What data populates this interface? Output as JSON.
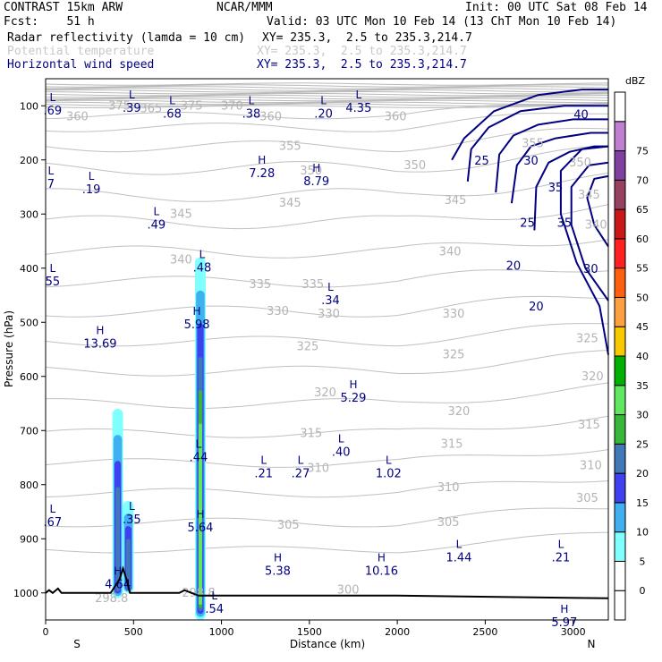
{
  "header": {
    "model": "CONTRAST 15km ARW",
    "org": "NCAR/MMM",
    "init": "Init: 00 UTC Sat 08 Feb 14",
    "fcst": "Fcst:    51 h",
    "valid": "Valid: 03 UTC Mon 10 Feb 14 (13 ChT Mon 10 Feb 14)",
    "fields": [
      {
        "name": "Radar reflectivity (lamda = 10 cm)",
        "xy": "XY= 235.3,  2.5 to 235.3,214.7",
        "color": "#000000"
      },
      {
        "name": "Potential temperature",
        "xy": "XY= 235.3,  2.5 to 235.3,214.7",
        "color": "#c8c8c8"
      },
      {
        "name": "Horizontal wind speed",
        "xy": "XY= 235.3,  2.5 to 235.3,214.7",
        "color": "#000080"
      }
    ]
  },
  "chart_data": {
    "type": "cross-section",
    "xlabel": "Distance (km)",
    "ylabel": "Pressure (hPa)",
    "xlim": [
      0,
      3200
    ],
    "ylim": [
      1050,
      50
    ],
    "xticks": [
      0,
      500,
      1000,
      1500,
      2000,
      2500,
      3000
    ],
    "yticks": [
      100,
      200,
      300,
      400,
      500,
      600,
      700,
      800,
      900,
      1000
    ],
    "x_end_labels": {
      "left": "S",
      "right": "N"
    },
    "colorbar": {
      "unit": "dBZ",
      "levels": [
        0,
        5,
        10,
        15,
        20,
        25,
        30,
        35,
        40,
        45,
        50,
        55,
        60,
        65,
        70,
        75
      ],
      "colors": [
        "#ffffff",
        "#ffffff",
        "#80ffff",
        "#40b0f0",
        "#4040f0",
        "#4078b8",
        "#38b838",
        "#60e860",
        "#00b000",
        "#f8c800",
        "#ffa040",
        "#ff6010",
        "#ff2020",
        "#c81818",
        "#984060",
        "#8040a0",
        "#c080d0",
        "#ffffff"
      ]
    },
    "theta_labels": [
      {
        "text": "375",
        "x": 420,
        "p": 100
      },
      {
        "text": "375",
        "x": 830,
        "p": 100
      },
      {
        "text": "370",
        "x": 1060,
        "p": 100
      },
      {
        "text": "365",
        "x": 600,
        "p": 105
      },
      {
        "text": "360",
        "x": 180,
        "p": 120
      },
      {
        "text": "360",
        "x": 1280,
        "p": 120
      },
      {
        "text": "360",
        "x": 1990,
        "p": 120
      },
      {
        "text": "355",
        "x": 1390,
        "p": 175
      },
      {
        "text": "355",
        "x": 2770,
        "p": 170
      },
      {
        "text": "350",
        "x": 1510,
        "p": 220
      },
      {
        "text": "350",
        "x": 2100,
        "p": 210
      },
      {
        "text": "350",
        "x": 3040,
        "p": 205
      },
      {
        "text": "345",
        "x": 770,
        "p": 300
      },
      {
        "text": "345",
        "x": 1390,
        "p": 280
      },
      {
        "text": "345",
        "x": 2330,
        "p": 275
      },
      {
        "text": "345",
        "x": 3090,
        "p": 265
      },
      {
        "text": "340",
        "x": 770,
        "p": 385
      },
      {
        "text": "340",
        "x": 2300,
        "p": 370
      },
      {
        "text": "340",
        "x": 3130,
        "p": 320
      },
      {
        "text": "335",
        "x": 1220,
        "p": 430
      },
      {
        "text": "335",
        "x": 1520,
        "p": 430
      },
      {
        "text": "330",
        "x": 1320,
        "p": 480
      },
      {
        "text": "330",
        "x": 1610,
        "p": 485
      },
      {
        "text": "330",
        "x": 2320,
        "p": 485
      },
      {
        "text": "325",
        "x": 1490,
        "p": 545
      },
      {
        "text": "325",
        "x": 2320,
        "p": 560
      },
      {
        "text": "325",
        "x": 3080,
        "p": 530
      },
      {
        "text": "320",
        "x": 1590,
        "p": 630
      },
      {
        "text": "320",
        "x": 3110,
        "p": 600
      },
      {
        "text": "320",
        "x": 2350,
        "p": 665
      },
      {
        "text": "315",
        "x": 1510,
        "p": 705
      },
      {
        "text": "315",
        "x": 2310,
        "p": 725
      },
      {
        "text": "315",
        "x": 3090,
        "p": 690
      },
      {
        "text": "310",
        "x": 1550,
        "p": 770
      },
      {
        "text": "310",
        "x": 2290,
        "p": 805
      },
      {
        "text": "310",
        "x": 3100,
        "p": 765
      },
      {
        "text": "305",
        "x": 1380,
        "p": 875
      },
      {
        "text": "305",
        "x": 2290,
        "p": 870
      },
      {
        "text": "305",
        "x": 3080,
        "p": 825
      },
      {
        "text": "300",
        "x": 1720,
        "p": 995
      },
      {
        "text": "298.8",
        "x": 375,
        "p": 1010
      },
      {
        "text": "298.8",
        "x": 870,
        "p": 1000
      }
    ],
    "wind_labels": [
      {
        "text": "40",
        "x": 3045,
        "p": 115
      },
      {
        "text": "25",
        "x": 2480,
        "p": 200
      },
      {
        "text": "30",
        "x": 2760,
        "p": 200
      },
      {
        "text": "35",
        "x": 2900,
        "p": 250
      },
      {
        "text": "25",
        "x": 2740,
        "p": 315
      },
      {
        "text": "35",
        "x": 2950,
        "p": 315
      },
      {
        "text": "20",
        "x": 2660,
        "p": 395
      },
      {
        "text": "30",
        "x": 3100,
        "p": 400
      },
      {
        "text": "20",
        "x": 2790,
        "p": 470
      }
    ],
    "extrema": [
      {
        "kind": "L",
        "value": ".69",
        "x": 40,
        "p": 95
      },
      {
        "kind": "L",
        "value": ".39",
        "x": 490,
        "p": 90
      },
      {
        "kind": "L",
        "value": ".68",
        "x": 720,
        "p": 100
      },
      {
        "kind": "L",
        "value": ".38",
        "x": 1170,
        "p": 100
      },
      {
        "kind": "L",
        "value": ".20",
        "x": 1580,
        "p": 100
      },
      {
        "kind": "L",
        "value": "4.35",
        "x": 1780,
        "p": 90
      },
      {
        "kind": "H",
        "value": "7.28",
        "x": 1230,
        "p": 210
      },
      {
        "kind": "H",
        "value": "8.79",
        "x": 1540,
        "p": 225
      },
      {
        "kind": "L",
        "value": ".19",
        "x": 260,
        "p": 240
      },
      {
        "kind": "L",
        "value": "7",
        "x": 30,
        "p": 230
      },
      {
        "kind": "L",
        "value": ".49",
        "x": 630,
        "p": 305
      },
      {
        "kind": "L",
        "value": ".48",
        "x": 890,
        "p": 385
      },
      {
        "kind": "L",
        "value": "55",
        "x": 40,
        "p": 410
      },
      {
        "kind": "L",
        "value": ".34",
        "x": 1620,
        "p": 445
      },
      {
        "kind": "H",
        "value": "5.98",
        "x": 860,
        "p": 490
      },
      {
        "kind": "H",
        "value": "13.69",
        "x": 310,
        "p": 525
      },
      {
        "kind": "H",
        "value": "5.29",
        "x": 1750,
        "p": 625
      },
      {
        "kind": "L",
        "value": ".44",
        "x": 870,
        "p": 735
      },
      {
        "kind": "L",
        "value": ".40",
        "x": 1680,
        "p": 725
      },
      {
        "kind": "L",
        "value": ".21",
        "x": 1240,
        "p": 765
      },
      {
        "kind": "L",
        "value": ".27",
        "x": 1450,
        "p": 765
      },
      {
        "kind": "L",
        "value": "1.02",
        "x": 1950,
        "p": 765
      },
      {
        "kind": "L",
        "value": ".67",
        "x": 40,
        "p": 855
      },
      {
        "kind": "L",
        "value": ".35",
        "x": 490,
        "p": 850
      },
      {
        "kind": "H",
        "value": "5.64",
        "x": 880,
        "p": 865
      },
      {
        "kind": "L",
        "value": "1.44",
        "x": 2350,
        "p": 920
      },
      {
        "kind": "L",
        "value": ".21",
        "x": 2930,
        "p": 920
      },
      {
        "kind": "H",
        "value": "5.38",
        "x": 1320,
        "p": 945
      },
      {
        "kind": "H",
        "value": "10.16",
        "x": 1910,
        "p": 945
      },
      {
        "kind": "H",
        "value": "4.64",
        "x": 410,
        "p": 970
      },
      {
        "kind": "L",
        "value": ".54",
        "x": 960,
        "p": 1015
      },
      {
        "kind": "H",
        "value": "5.97",
        "x": 2950,
        "p": 1040
      }
    ],
    "reflectivity_columns": [
      {
        "x": 410,
        "p_top": 660,
        "p_bottom": 1010,
        "max_dbz": 20
      },
      {
        "x": 470,
        "p_top": 830,
        "p_bottom": 1000,
        "max_dbz": 20
      },
      {
        "x": 880,
        "p_top": 380,
        "p_bottom": 1050,
        "max_dbz": 30
      }
    ]
  }
}
